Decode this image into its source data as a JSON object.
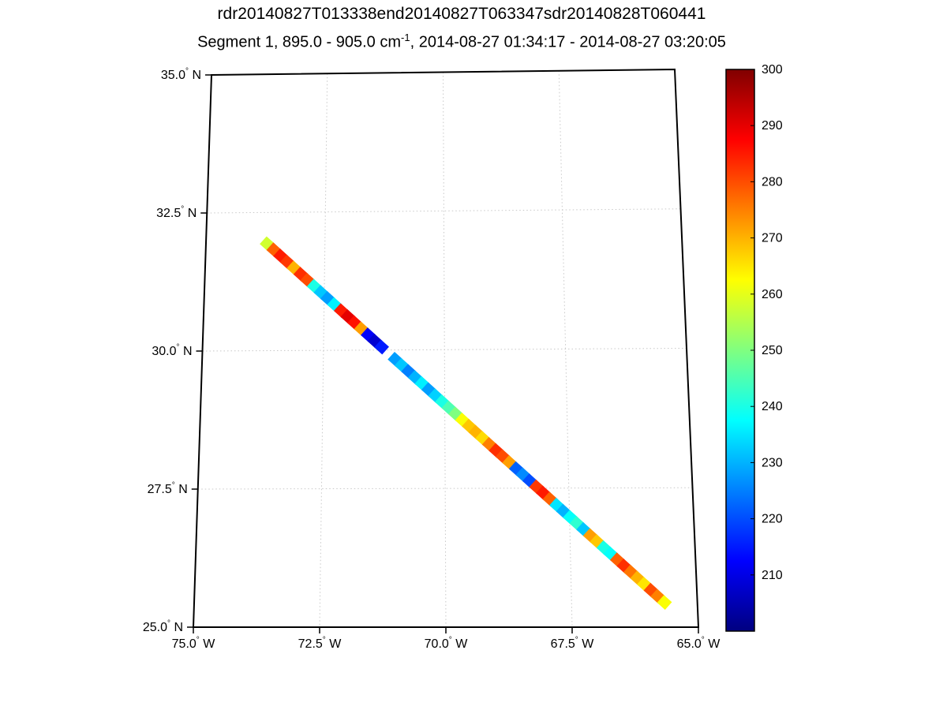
{
  "titles": {
    "line1": "rdr20140827T013338end20140827T063347sdr20140828T060441",
    "line2_pre": "Segment 1, 895.0 - 905.0 cm",
    "line2_sup": "-1",
    "line2_post": ", 2014-08-27 01:34:17 - 2014-08-27 03:20:05"
  },
  "chart_data": {
    "type": "heatmap",
    "variant": "satellite-swath-on-map",
    "title": "rdr20140827T013338end20140827T063347sdr20140828T060441",
    "subtitle": "Segment 1, 895.0 - 905.0 cm^-1, 2014-08-27 01:34:17 - 2014-08-27 03:20:05",
    "axes": {
      "lat_range": [
        25.0,
        35.0
      ],
      "lon_range_w": [
        75.0,
        65.0
      ],
      "lat_hemisphere": "N",
      "lon_hemisphere": "W",
      "lat_ticks": [
        {
          "label": "35.0",
          "value": 35.0
        },
        {
          "label": "32.5",
          "value": 32.5
        },
        {
          "label": "30.0",
          "value": 30.0
        },
        {
          "label": "27.5",
          "value": 27.5
        },
        {
          "label": "25.0",
          "value": 25.0
        }
      ],
      "lon_ticks": [
        {
          "label": "75.0",
          "value": 75.0
        },
        {
          "label": "72.5",
          "value": 72.5
        },
        {
          "label": "70.0",
          "value": 70.0
        },
        {
          "label": "67.5",
          "value": 67.5
        },
        {
          "label": "65.0",
          "value": 65.0
        }
      ],
      "grid": "dotted",
      "grid_color": "#c8c8c8",
      "border_color": "#000000"
    },
    "colorbar": {
      "min": 200,
      "max": 300,
      "ticks": [
        300,
        290,
        280,
        270,
        260,
        250,
        240,
        230,
        220,
        210
      ],
      "colormap": "jet",
      "position": "right"
    },
    "swath": {
      "track_start": {
        "lon_w": 73.8,
        "lat_n": 32.0
      },
      "track_end": {
        "lon_w": 65.6,
        "lat_n": 25.4
      },
      "values": [
        258,
        278,
        285,
        282,
        270,
        283,
        280,
        240,
        232,
        228,
        236,
        285,
        290,
        286,
        272,
        212,
        208,
        215,
        null,
        228,
        232,
        225,
        230,
        236,
        228,
        233,
        240,
        245,
        250,
        262,
        268,
        270,
        266,
        275,
        283,
        280,
        272,
        222,
        226,
        220,
        282,
        285,
        278,
        235,
        230,
        238,
        242,
        232,
        272,
        268,
        240,
        238,
        278,
        283,
        276,
        270,
        265,
        280,
        275,
        262
      ]
    }
  }
}
